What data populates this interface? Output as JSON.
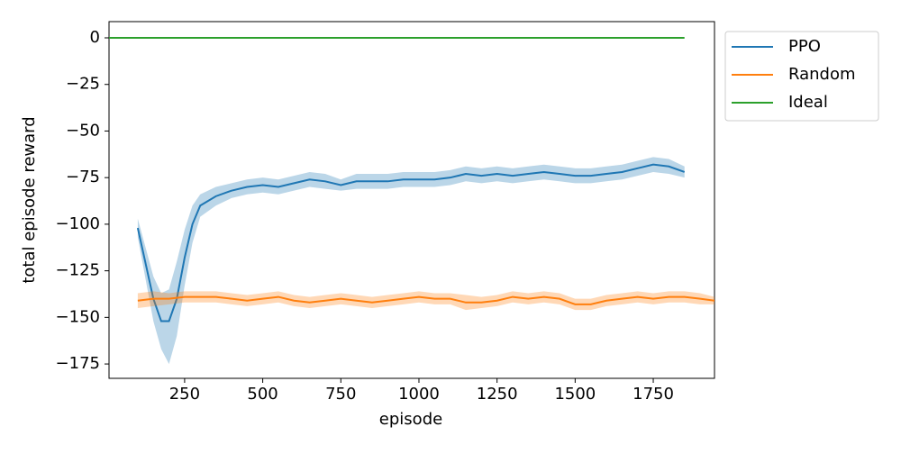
{
  "chart_data": {
    "type": "line",
    "xlabel": "episode",
    "ylabel": "total episode reward",
    "xlim": [
      8,
      1946
    ],
    "ylim": [
      -182.7,
      8.7
    ],
    "xticks": [
      250,
      500,
      750,
      1000,
      1250,
      1500,
      1750
    ],
    "yticks": [
      0,
      {
        "value": -25,
        "label": "−25"
      },
      {
        "value": -50,
        "label": "−50"
      },
      {
        "value": -75,
        "label": "−75"
      },
      {
        "value": -100,
        "label": "−100"
      },
      {
        "value": -125,
        "label": "−125"
      },
      {
        "value": -150,
        "label": "−150"
      },
      {
        "value": -175,
        "label": "−175"
      }
    ],
    "legend": "outside-right",
    "series": [
      {
        "name": "PPO",
        "color": "#1f77b4",
        "x": [
          100,
          150,
          175,
          200,
          225,
          250,
          275,
          300,
          350,
          400,
          450,
          500,
          550,
          600,
          650,
          700,
          750,
          800,
          850,
          900,
          950,
          1000,
          1050,
          1100,
          1150,
          1200,
          1250,
          1300,
          1350,
          1400,
          1450,
          1500,
          1550,
          1600,
          1650,
          1700,
          1750,
          1800,
          1850
        ],
        "values": [
          -102,
          -140,
          -152,
          -152,
          -140,
          -118,
          -100,
          -90,
          -85,
          -82,
          -80,
          -79,
          -80,
          -78,
          -76,
          -77,
          -79,
          -77,
          -77,
          -77,
          -76,
          -76,
          -76,
          -75,
          -73,
          -74,
          -73,
          -74,
          -73,
          -72,
          -73,
          -74,
          -74,
          -73,
          -72,
          -70,
          -68,
          -69,
          -72
        ],
        "lower": [
          -107,
          -152,
          -167,
          -175,
          -160,
          -133,
          -110,
          -96,
          -90,
          -86,
          -84,
          -83,
          -84,
          -82,
          -80,
          -81,
          -82,
          -81,
          -81,
          -81,
          -80,
          -80,
          -80,
          -79,
          -77,
          -78,
          -77,
          -78,
          -77,
          -76,
          -77,
          -78,
          -78,
          -77,
          -76,
          -74,
          -72,
          -73,
          -75
        ],
        "upper": [
          -97,
          -128,
          -137,
          -135,
          -120,
          -103,
          -90,
          -84,
          -80,
          -78,
          -76,
          -75,
          -76,
          -74,
          -72,
          -73,
          -76,
          -73,
          -73,
          -73,
          -72,
          -72,
          -72,
          -71,
          -69,
          -70,
          -69,
          -70,
          -69,
          -68,
          -69,
          -70,
          -70,
          -69,
          -68,
          -66,
          -64,
          -65,
          -69
        ]
      },
      {
        "name": "Random",
        "color": "#ff7f0e",
        "x": [
          100,
          150,
          200,
          250,
          300,
          350,
          400,
          450,
          500,
          550,
          600,
          650,
          700,
          750,
          800,
          850,
          900,
          950,
          1000,
          1050,
          1100,
          1150,
          1200,
          1250,
          1300,
          1350,
          1400,
          1450,
          1500,
          1550,
          1600,
          1650,
          1700,
          1750,
          1800,
          1850,
          1900,
          1946
        ],
        "values": [
          -141,
          -140,
          -140,
          -139,
          -139,
          -139,
          -140,
          -141,
          -140,
          -139,
          -141,
          -142,
          -141,
          -140,
          -141,
          -142,
          -141,
          -140,
          -139,
          -140,
          -140,
          -142,
          -142,
          -141,
          -139,
          -140,
          -139,
          -140,
          -143,
          -143,
          -141,
          -140,
          -139,
          -140,
          -139,
          -139,
          -140,
          -141
        ],
        "lower": [
          -145,
          -144,
          -143,
          -142,
          -142,
          -142,
          -143,
          -144,
          -143,
          -142,
          -144,
          -145,
          -144,
          -143,
          -144,
          -145,
          -144,
          -143,
          -142,
          -143,
          -143,
          -146,
          -145,
          -144,
          -142,
          -143,
          -142,
          -143,
          -146,
          -146,
          -144,
          -143,
          -142,
          -143,
          -142,
          -142,
          -143,
          -143
        ],
        "upper": [
          -137,
          -136,
          -137,
          -136,
          -136,
          -136,
          -137,
          -138,
          -137,
          -136,
          -138,
          -139,
          -138,
          -137,
          -138,
          -139,
          -138,
          -137,
          -136,
          -137,
          -137,
          -138,
          -139,
          -138,
          -136,
          -137,
          -136,
          -137,
          -140,
          -140,
          -138,
          -137,
          -136,
          -137,
          -136,
          -136,
          -137,
          -139
        ]
      },
      {
        "name": "Ideal",
        "color": "#2ca02c",
        "x": [
          8,
          1850
        ],
        "values": [
          0,
          0
        ]
      }
    ]
  }
}
